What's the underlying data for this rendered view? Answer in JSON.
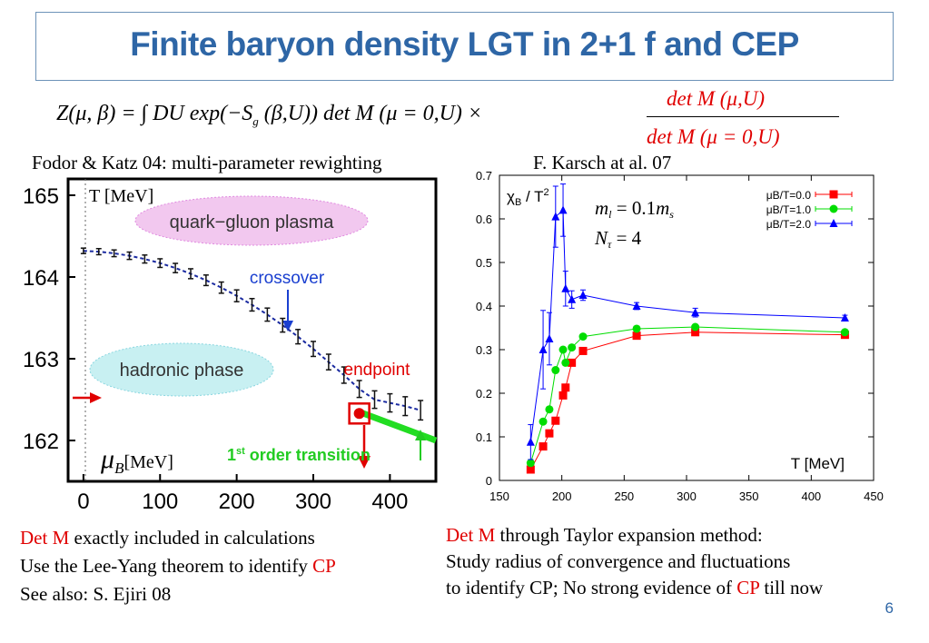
{
  "slide": {
    "title": "Finite baryon density  LGT  in 2+1 f and CEP",
    "page_number": "6"
  },
  "formula": {
    "lhs": "Z(μ, β) = ∫ DU exp(−S",
    "g": "g",
    "rhs": "(β,U)) det M (μ = 0,U) ×",
    "num": "det M (μ,U)",
    "den": "det M (μ = 0,U)"
  },
  "left_panel": {
    "header": "Fodor & Katz   04: multi-parameter  rewighting",
    "y_label": "T [MeV]",
    "x_label_symbol": "μ",
    "x_label_sub": "B",
    "x_label_unit": "[MeV]",
    "qgp_label": "quark−gluon plasma",
    "hadronic_label": "hadronic phase",
    "crossover_label": "crossover",
    "endpoint_label": "endpoint",
    "transition_label_prefix": "1",
    "transition_label_sup": "st",
    "transition_label_rest": " order transition",
    "notes": [
      {
        "red": "Det M",
        "text": "  exactly included in calculations",
        "red2": ""
      },
      {
        "red": "",
        "text": "Use the Lee-Yang theorem to identify ",
        "red2": "CP"
      },
      {
        "red": "",
        "text": "See also:  S. Ejiri 08",
        "red2": ""
      }
    ]
  },
  "right_panel": {
    "header": "F. Karsch at al. 07",
    "ylabel_chi": "χ",
    "ylabel_rest": "B",
    "ylabel_tail": " / T",
    "ylabel_sup": "2",
    "xlabel": "T [MeV]",
    "param1": "m_l = 0.1 m_s",
    "param1_m": "m",
    "param1_l": "l",
    "param1_eq": " = 0.1",
    "param1_ms": "m",
    "param1_s": "s",
    "param2_N": "N",
    "param2_tau": "τ",
    "param2_eq": " = 4",
    "notes": [
      {
        "red": "Det M",
        "text": "  through Taylor expansion method:",
        "red2": "",
        "tail": ""
      },
      {
        "red": "",
        "text": "Study radius  of convergence  and fluctuations",
        "red2": "",
        "tail": ""
      },
      {
        "red": "",
        "text": "to identify CP; No strong evidence of ",
        "red2": "CP",
        "tail": " till now"
      }
    ]
  },
  "chart_data": [
    {
      "type": "line",
      "title": "",
      "xlabel": "μB[MeV]",
      "ylabel": "T [MeV]",
      "xlim": [
        -20,
        460
      ],
      "ylim": [
        161.5,
        165.2
      ],
      "x_ticks": [
        0,
        100,
        200,
        300,
        400
      ],
      "y_ticks": [
        162,
        163,
        164,
        165
      ],
      "series": [
        {
          "name": "crossover",
          "x": [
            0,
            20,
            40,
            60,
            80,
            100,
            120,
            140,
            160,
            180,
            200,
            220,
            240,
            260,
            280,
            300,
            320,
            340,
            360,
            380,
            400,
            420,
            440
          ],
          "y": [
            164.32,
            164.31,
            164.29,
            164.26,
            164.22,
            164.17,
            164.11,
            164.04,
            163.96,
            163.87,
            163.77,
            163.66,
            163.54,
            163.41,
            163.27,
            163.12,
            162.96,
            162.8,
            162.63,
            162.5,
            162.46,
            162.42,
            162.37
          ]
        },
        {
          "name": "1st order transition",
          "x": [
            360,
            460
          ],
          "y": [
            162.35,
            162.0
          ]
        }
      ],
      "endpoint": {
        "x": 360,
        "y": 162.33
      },
      "annotations": [
        "quark−gluon plasma",
        "hadronic phase",
        "crossover",
        "endpoint",
        "1st order transition"
      ],
      "grid": false
    },
    {
      "type": "line",
      "title": "",
      "xlabel": "T [MeV]",
      "ylabel": "χB / T2",
      "xlim": [
        150,
        450
      ],
      "ylim": [
        0,
        0.7
      ],
      "x_ticks": [
        150,
        200,
        250,
        300,
        350,
        400,
        450
      ],
      "y_ticks": [
        0,
        0.1,
        0.2,
        0.3,
        0.4,
        0.5,
        0.6,
        0.7
      ],
      "legend": "top-right",
      "series": [
        {
          "name": "μB/T=0.0",
          "color": "#ff0000",
          "marker": "square",
          "x": [
            175,
            185,
            190,
            195,
            201,
            203,
            208,
            217,
            260,
            307,
            427
          ],
          "y": [
            0.025,
            0.078,
            0.108,
            0.137,
            0.195,
            0.213,
            0.27,
            0.297,
            0.332,
            0.34,
            0.334
          ]
        },
        {
          "name": "μB/T=1.0",
          "color": "#00dd00",
          "marker": "circle",
          "x": [
            175,
            185,
            190,
            195,
            201,
            203,
            208,
            217,
            260,
            307,
            427
          ],
          "y": [
            0.04,
            0.135,
            0.163,
            0.253,
            0.3,
            0.27,
            0.305,
            0.33,
            0.348,
            0.352,
            0.34
          ]
        },
        {
          "name": "μB/T=2.0",
          "color": "#0000ff",
          "marker": "triangle",
          "x": [
            175,
            185,
            190,
            195,
            201,
            203,
            208,
            217,
            260,
            307,
            427
          ],
          "y": [
            0.088,
            0.3,
            0.325,
            0.605,
            0.62,
            0.44,
            0.415,
            0.425,
            0.4,
            0.385,
            0.373
          ]
        }
      ],
      "grid": false
    }
  ]
}
